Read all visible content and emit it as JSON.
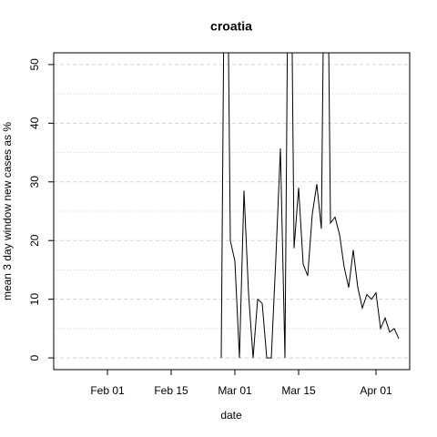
{
  "chart_data": {
    "type": "line",
    "title": "croatia",
    "x_label": "date",
    "y_label": "mean  3  day window new cases as %",
    "x": [
      57,
      58,
      59,
      60,
      61,
      62,
      63,
      64,
      65,
      66,
      67,
      68,
      69,
      70,
      71,
      72,
      73,
      74,
      75,
      76,
      77,
      78,
      79,
      80,
      81,
      82,
      83,
      84,
      85,
      86,
      87,
      88,
      89,
      90,
      91,
      92,
      93,
      94,
      95,
      96
    ],
    "values": [
      0,
      100,
      20,
      16.5,
      0,
      28.5,
      11,
      0,
      10,
      9.3,
      0,
      0,
      17,
      35.7,
      0,
      100,
      18.7,
      29,
      16,
      14,
      24.5,
      29.6,
      22,
      100,
      23,
      24,
      21,
      15.5,
      12,
      18.4,
      12,
      8.5,
      10.8,
      10,
      11.1,
      5,
      6.8,
      4.4,
      5,
      3.3
    ],
    "color": "#000000",
    "xlim": [
      20.2,
      98.4
    ],
    "xticks": [
      {
        "value": 32,
        "label": "Feb 01"
      },
      {
        "value": 46,
        "label": "Feb 15"
      },
      {
        "value": 60,
        "label": "Mar 01"
      },
      {
        "value": 74,
        "label": "Mar 15"
      },
      {
        "value": 91,
        "label": "Apr 01"
      }
    ],
    "ylim": [
      -2,
      52
    ],
    "yticks": [
      0,
      10,
      20,
      30,
      40,
      50
    ],
    "grid": true
  }
}
